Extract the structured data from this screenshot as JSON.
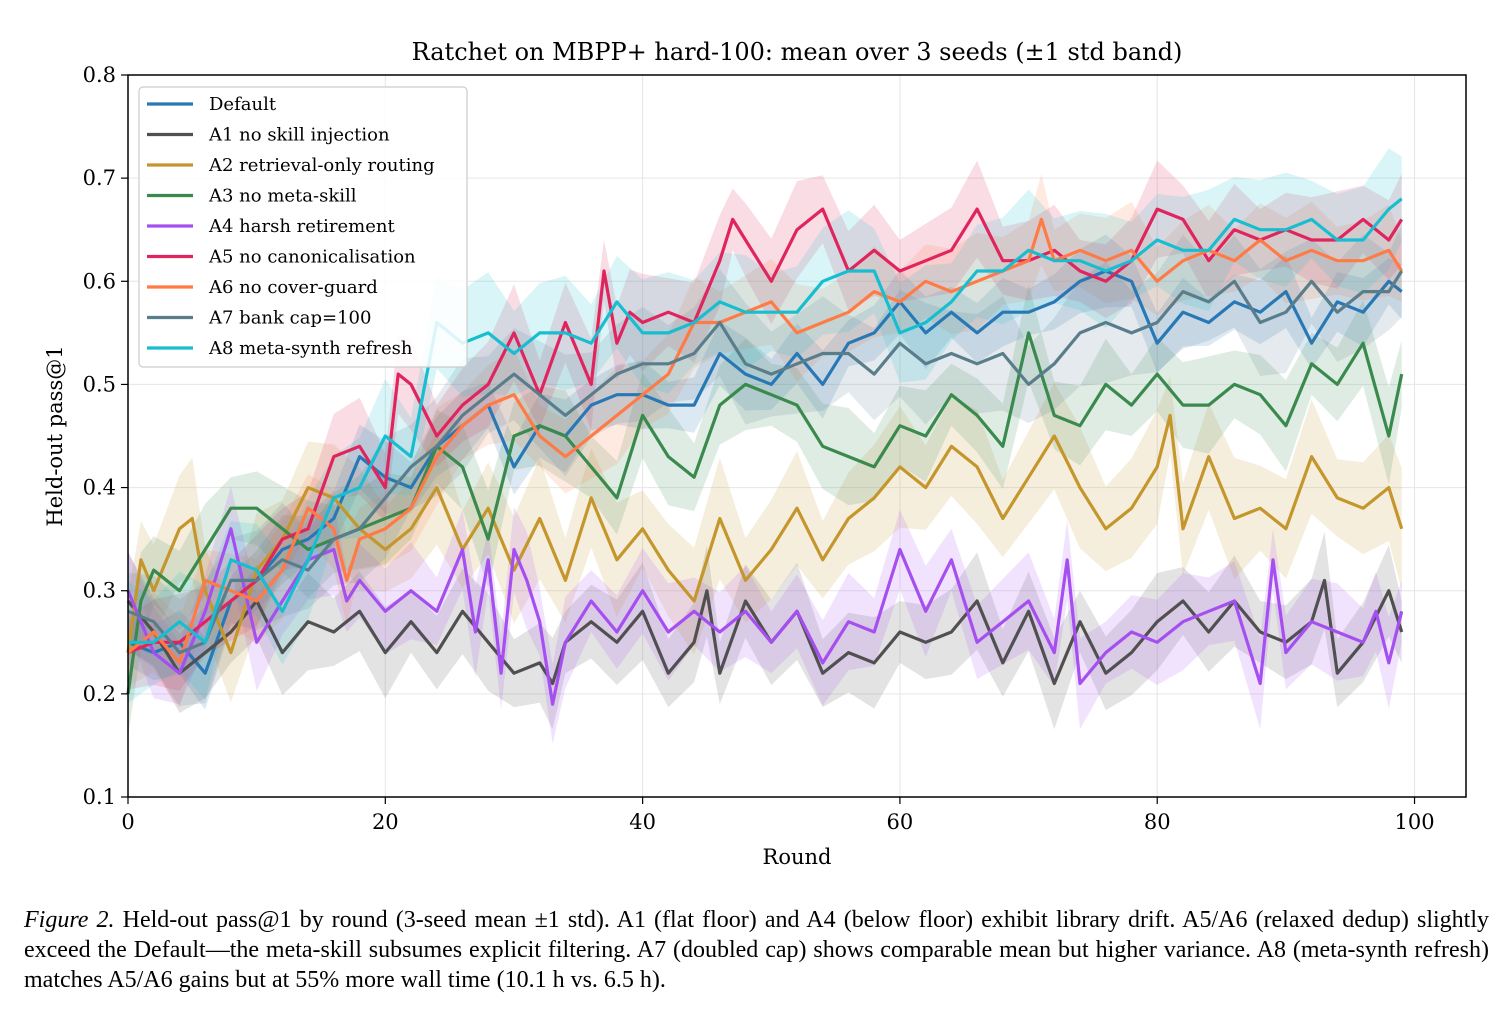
{
  "chart_data": {
    "type": "line",
    "title": "Ratchet on MBPP+ hard-100: mean over 3 seeds (±1 std band)",
    "xlabel": "Round",
    "ylabel": "Held-out pass@1",
    "xlim": [
      0,
      104
    ],
    "ylim": [
      0.1,
      0.8
    ],
    "xticks": [
      0,
      20,
      40,
      60,
      80,
      100
    ],
    "yticks": [
      0.1,
      0.2,
      0.3,
      0.4,
      0.5,
      0.6,
      0.7,
      0.8
    ],
    "grid": true,
    "legend_position": "upper-left",
    "series": [
      {
        "name": "Default",
        "color": "#2878b5",
        "x": [
          0,
          2,
          4,
          6,
          8,
          10,
          12,
          14,
          16,
          18,
          20,
          22,
          24,
          26,
          28,
          30,
          32,
          34,
          36,
          38,
          40,
          42,
          44,
          46,
          48,
          50,
          52,
          54,
          56,
          58,
          60,
          62,
          64,
          66,
          68,
          70,
          72,
          74,
          76,
          78,
          80,
          82,
          84,
          86,
          88,
          90,
          92,
          94,
          96,
          98,
          99
        ],
        "y": [
          0.25,
          0.24,
          0.25,
          0.22,
          0.29,
          0.31,
          0.34,
          0.35,
          0.37,
          0.43,
          0.41,
          0.4,
          0.44,
          0.46,
          0.48,
          0.42,
          0.46,
          0.45,
          0.48,
          0.49,
          0.49,
          0.48,
          0.48,
          0.53,
          0.51,
          0.5,
          0.53,
          0.5,
          0.54,
          0.55,
          0.58,
          0.55,
          0.57,
          0.55,
          0.57,
          0.57,
          0.58,
          0.6,
          0.61,
          0.6,
          0.54,
          0.57,
          0.56,
          0.58,
          0.57,
          0.59,
          0.54,
          0.58,
          0.57,
          0.6,
          0.59
        ],
        "std": 0.03
      },
      {
        "name": "A1 no skill injection",
        "color": "#505050",
        "x": [
          0,
          2,
          4,
          6,
          8,
          10,
          12,
          14,
          16,
          18,
          20,
          22,
          24,
          26,
          28,
          30,
          32,
          33,
          34,
          36,
          38,
          40,
          42,
          44,
          45,
          46,
          48,
          50,
          52,
          54,
          56,
          58,
          60,
          62,
          64,
          66,
          68,
          70,
          72,
          74,
          76,
          78,
          80,
          82,
          84,
          86,
          88,
          90,
          92,
          93,
          94,
          96,
          98,
          99
        ],
        "y": [
          0.29,
          0.26,
          0.22,
          0.24,
          0.26,
          0.29,
          0.24,
          0.27,
          0.26,
          0.28,
          0.24,
          0.27,
          0.24,
          0.28,
          0.25,
          0.22,
          0.23,
          0.21,
          0.25,
          0.27,
          0.25,
          0.28,
          0.22,
          0.25,
          0.3,
          0.22,
          0.29,
          0.25,
          0.28,
          0.22,
          0.24,
          0.23,
          0.26,
          0.25,
          0.26,
          0.29,
          0.23,
          0.28,
          0.21,
          0.27,
          0.22,
          0.24,
          0.27,
          0.29,
          0.26,
          0.29,
          0.26,
          0.25,
          0.27,
          0.31,
          0.22,
          0.25,
          0.3,
          0.26
        ],
        "std": 0.04
      },
      {
        "name": "A2 retrieval-only routing",
        "color": "#c4962c",
        "x": [
          0,
          1,
          2,
          4,
          5,
          6,
          8,
          10,
          12,
          14,
          16,
          18,
          20,
          22,
          24,
          26,
          28,
          30,
          32,
          34,
          36,
          38,
          40,
          42,
          44,
          46,
          48,
          50,
          52,
          54,
          56,
          58,
          60,
          62,
          64,
          66,
          68,
          70,
          72,
          74,
          76,
          78,
          80,
          81,
          82,
          84,
          86,
          88,
          90,
          92,
          94,
          96,
          98,
          99
        ],
        "y": [
          0.24,
          0.33,
          0.3,
          0.36,
          0.37,
          0.3,
          0.24,
          0.32,
          0.35,
          0.4,
          0.39,
          0.36,
          0.34,
          0.36,
          0.4,
          0.34,
          0.38,
          0.32,
          0.37,
          0.31,
          0.39,
          0.33,
          0.36,
          0.32,
          0.29,
          0.37,
          0.31,
          0.34,
          0.38,
          0.33,
          0.37,
          0.39,
          0.42,
          0.4,
          0.44,
          0.42,
          0.37,
          0.41,
          0.45,
          0.4,
          0.36,
          0.38,
          0.42,
          0.47,
          0.36,
          0.43,
          0.37,
          0.38,
          0.36,
          0.43,
          0.39,
          0.38,
          0.4,
          0.36
        ],
        "std": 0.05
      },
      {
        "name": "A3 no meta-skill",
        "color": "#3a8a4e",
        "x": [
          0,
          1,
          2,
          4,
          6,
          8,
          10,
          12,
          14,
          16,
          18,
          20,
          22,
          24,
          26,
          28,
          30,
          32,
          34,
          36,
          38,
          40,
          42,
          44,
          46,
          48,
          50,
          52,
          54,
          56,
          58,
          60,
          62,
          64,
          66,
          68,
          70,
          72,
          74,
          76,
          78,
          80,
          82,
          84,
          86,
          88,
          90,
          92,
          94,
          96,
          98,
          99
        ],
        "y": [
          0.2,
          0.29,
          0.32,
          0.3,
          0.34,
          0.38,
          0.38,
          0.36,
          0.34,
          0.35,
          0.36,
          0.37,
          0.38,
          0.44,
          0.42,
          0.35,
          0.45,
          0.46,
          0.45,
          0.42,
          0.39,
          0.47,
          0.43,
          0.41,
          0.48,
          0.5,
          0.49,
          0.48,
          0.44,
          0.43,
          0.42,
          0.46,
          0.45,
          0.49,
          0.47,
          0.44,
          0.55,
          0.47,
          0.46,
          0.5,
          0.48,
          0.51,
          0.48,
          0.48,
          0.5,
          0.49,
          0.46,
          0.52,
          0.5,
          0.54,
          0.45,
          0.51
        ],
        "std": 0.04
      },
      {
        "name": "A4 harsh retirement",
        "color": "#a64ff0",
        "x": [
          0,
          2,
          4,
          6,
          8,
          10,
          12,
          14,
          16,
          17,
          18,
          20,
          22,
          24,
          26,
          27,
          28,
          29,
          30,
          31,
          32,
          33,
          34,
          36,
          38,
          40,
          42,
          44,
          46,
          48,
          50,
          52,
          54,
          56,
          58,
          60,
          62,
          64,
          66,
          68,
          70,
          72,
          73,
          74,
          76,
          78,
          80,
          82,
          84,
          86,
          88,
          89,
          90,
          92,
          94,
          96,
          97,
          98,
          99
        ],
        "y": [
          0.3,
          0.24,
          0.22,
          0.28,
          0.36,
          0.25,
          0.29,
          0.33,
          0.34,
          0.29,
          0.31,
          0.28,
          0.3,
          0.28,
          0.34,
          0.26,
          0.33,
          0.22,
          0.34,
          0.31,
          0.27,
          0.19,
          0.25,
          0.29,
          0.26,
          0.3,
          0.26,
          0.28,
          0.26,
          0.28,
          0.25,
          0.28,
          0.23,
          0.27,
          0.26,
          0.34,
          0.28,
          0.33,
          0.25,
          0.27,
          0.29,
          0.24,
          0.33,
          0.21,
          0.24,
          0.26,
          0.25,
          0.27,
          0.28,
          0.29,
          0.21,
          0.33,
          0.24,
          0.27,
          0.26,
          0.25,
          0.28,
          0.23,
          0.28
        ],
        "std": 0.04
      },
      {
        "name": "A5 no canonicalisation",
        "color": "#e0245e",
        "x": [
          0,
          2,
          4,
          6,
          8,
          10,
          12,
          14,
          16,
          18,
          20,
          21,
          22,
          24,
          26,
          28,
          30,
          32,
          34,
          36,
          37,
          38,
          39,
          40,
          42,
          44,
          46,
          47,
          48,
          50,
          52,
          54,
          56,
          58,
          60,
          62,
          64,
          66,
          68,
          70,
          72,
          74,
          76,
          78,
          80,
          82,
          84,
          86,
          88,
          90,
          92,
          94,
          96,
          98,
          99
        ],
        "y": [
          0.24,
          0.25,
          0.25,
          0.27,
          0.29,
          0.31,
          0.35,
          0.36,
          0.43,
          0.44,
          0.4,
          0.51,
          0.5,
          0.45,
          0.48,
          0.5,
          0.55,
          0.49,
          0.56,
          0.5,
          0.61,
          0.54,
          0.57,
          0.56,
          0.57,
          0.56,
          0.62,
          0.66,
          0.64,
          0.6,
          0.65,
          0.67,
          0.61,
          0.63,
          0.61,
          0.62,
          0.63,
          0.67,
          0.62,
          0.62,
          0.63,
          0.61,
          0.6,
          0.62,
          0.67,
          0.66,
          0.62,
          0.65,
          0.64,
          0.65,
          0.64,
          0.64,
          0.66,
          0.64,
          0.66
        ],
        "std": 0.04
      },
      {
        "name": "A6 no cover-guard",
        "color": "#ff7a45",
        "x": [
          0,
          2,
          4,
          6,
          8,
          10,
          12,
          14,
          16,
          17,
          18,
          20,
          22,
          24,
          26,
          28,
          30,
          32,
          34,
          36,
          38,
          40,
          42,
          44,
          46,
          48,
          50,
          52,
          54,
          56,
          58,
          60,
          62,
          64,
          66,
          68,
          70,
          71,
          72,
          74,
          76,
          78,
          80,
          82,
          84,
          86,
          88,
          90,
          92,
          94,
          96,
          98,
          99
        ],
        "y": [
          0.24,
          0.26,
          0.23,
          0.31,
          0.3,
          0.29,
          0.32,
          0.38,
          0.36,
          0.31,
          0.35,
          0.36,
          0.38,
          0.43,
          0.46,
          0.48,
          0.49,
          0.45,
          0.43,
          0.45,
          0.47,
          0.49,
          0.51,
          0.56,
          0.56,
          0.57,
          0.58,
          0.55,
          0.56,
          0.57,
          0.59,
          0.58,
          0.6,
          0.59,
          0.6,
          0.61,
          0.62,
          0.66,
          0.62,
          0.63,
          0.62,
          0.63,
          0.6,
          0.62,
          0.63,
          0.62,
          0.64,
          0.62,
          0.63,
          0.62,
          0.62,
          0.63,
          0.61
        ],
        "std": 0.04
      },
      {
        "name": "A7 bank cap=100",
        "color": "#5a7d8c",
        "x": [
          0,
          2,
          4,
          6,
          8,
          10,
          12,
          14,
          16,
          18,
          20,
          22,
          24,
          26,
          28,
          30,
          32,
          34,
          36,
          38,
          40,
          42,
          44,
          46,
          48,
          50,
          52,
          54,
          56,
          58,
          60,
          62,
          64,
          66,
          68,
          70,
          72,
          74,
          76,
          78,
          80,
          82,
          84,
          86,
          88,
          90,
          92,
          94,
          96,
          98,
          99
        ],
        "y": [
          0.28,
          0.27,
          0.24,
          0.25,
          0.31,
          0.31,
          0.33,
          0.32,
          0.35,
          0.36,
          0.39,
          0.42,
          0.44,
          0.47,
          0.49,
          0.51,
          0.49,
          0.47,
          0.49,
          0.51,
          0.52,
          0.52,
          0.53,
          0.56,
          0.52,
          0.51,
          0.52,
          0.53,
          0.53,
          0.51,
          0.54,
          0.52,
          0.53,
          0.52,
          0.53,
          0.5,
          0.52,
          0.55,
          0.56,
          0.55,
          0.56,
          0.59,
          0.58,
          0.6,
          0.56,
          0.57,
          0.6,
          0.57,
          0.59,
          0.59,
          0.61
        ],
        "std": 0.05
      },
      {
        "name": "A8 meta-synth refresh",
        "color": "#17becf",
        "x": [
          0,
          2,
          4,
          6,
          8,
          10,
          12,
          14,
          16,
          18,
          20,
          22,
          24,
          26,
          28,
          30,
          32,
          34,
          36,
          38,
          40,
          42,
          44,
          46,
          48,
          50,
          52,
          54,
          56,
          58,
          60,
          62,
          64,
          66,
          68,
          70,
          72,
          74,
          76,
          78,
          80,
          82,
          84,
          86,
          88,
          90,
          92,
          94,
          96,
          98,
          99
        ],
        "y": [
          0.25,
          0.25,
          0.27,
          0.25,
          0.33,
          0.32,
          0.28,
          0.33,
          0.39,
          0.4,
          0.45,
          0.43,
          0.56,
          0.54,
          0.55,
          0.53,
          0.55,
          0.55,
          0.54,
          0.58,
          0.55,
          0.55,
          0.56,
          0.58,
          0.57,
          0.57,
          0.57,
          0.6,
          0.61,
          0.61,
          0.55,
          0.56,
          0.58,
          0.61,
          0.61,
          0.63,
          0.62,
          0.62,
          0.61,
          0.62,
          0.64,
          0.63,
          0.63,
          0.66,
          0.65,
          0.65,
          0.66,
          0.64,
          0.64,
          0.67,
          0.68
        ],
        "std": 0.05
      }
    ]
  },
  "caption": {
    "label": "Figure 2.",
    "text": "Held-out pass@1 by round (3-seed mean ±1 std). A1 (flat floor) and A4 (below floor) exhibit library drift. A5/A6 (relaxed dedup) slightly exceed the Default—the meta-skill subsumes explicit filtering. A7 (doubled cap) shows comparable mean but higher variance. A8 (meta-synth refresh) matches A5/A6 gains but at 55% more wall time (10.1 h vs. 6.5 h)."
  }
}
